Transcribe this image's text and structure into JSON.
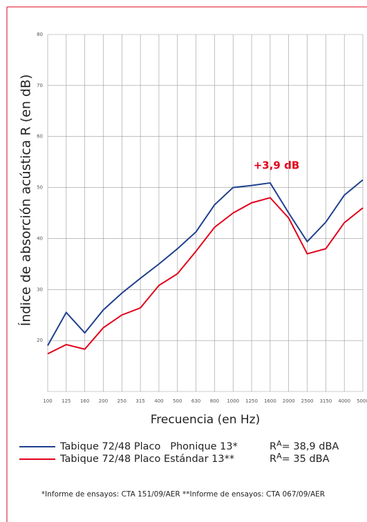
{
  "chart_data": {
    "type": "line",
    "y_label": "Índice de absorción acústica R (en dB)",
    "x_label": "Frecuencia (en Hz)",
    "annotation": "+3,9 dB",
    "categories": [
      "100",
      "125",
      "160",
      "200",
      "250",
      "315",
      "400",
      "500",
      "630",
      "800",
      "1000",
      "1250",
      "1600",
      "2000",
      "2500",
      "3150",
      "4000",
      "5000"
    ],
    "series": [
      {
        "name": "Tabique 72/48 Placo   Phonique 13*",
        "rating": "R",
        "rating_sub": "A",
        "rating_value": "= 38,9 dBA",
        "color": "#1f3f8f",
        "values": [
          19,
          25.5,
          21.5,
          26,
          29.3,
          32.2,
          35,
          38,
          41.3,
          46.6,
          50,
          50.4,
          50.9,
          45,
          39.4,
          43.2,
          48.5,
          51.5
        ]
      },
      {
        "name": "Tabique 72/48 Placo Estándar 13**",
        "rating": "R",
        "rating_sub": "A",
        "rating_value": "= 35 dBA",
        "color": "#e2001a",
        "values": [
          17.4,
          19.2,
          18.3,
          22.5,
          25,
          26.4,
          30.8,
          33.1,
          37.5,
          42.2,
          45,
          47,
          48,
          44,
          37,
          38,
          43.1,
          46
        ]
      }
    ],
    "ylim": [
      10,
      80
    ],
    "yticks": [
      20,
      30,
      40,
      50,
      60,
      70,
      80
    ],
    "grid": true,
    "footnote": "*Informe de ensayos: CTA 151/09/AER  **Informe de ensayos: CTA 067/09/AER"
  }
}
